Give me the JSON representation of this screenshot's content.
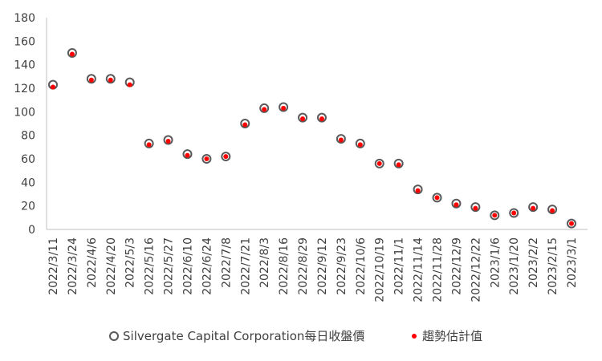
{
  "chart_data": {
    "type": "scatter",
    "title": "",
    "xlabel": "",
    "ylabel": "",
    "ylim": [
      0,
      180
    ],
    "y_ticks": [
      0,
      20,
      40,
      60,
      80,
      100,
      120,
      140,
      160,
      180
    ],
    "x_tick_labels": [
      "2022/3/11",
      "2022/3/24",
      "2022/4/6",
      "2022/4/20",
      "2022/5/3",
      "2022/5/16",
      "2022/5/27",
      "2022/6/10",
      "2022/6/24",
      "2022/7/8",
      "2022/7/21",
      "2022/8/3",
      "2022/8/16",
      "2022/8/29",
      "2022/9/12",
      "2022/9/23",
      "2022/10/6",
      "2022/10/19",
      "2022/11/1",
      "2022/11/14",
      "2022/11/28",
      "2022/12/9",
      "2022/12/22",
      "2023/1/6",
      "2023/1/20",
      "2023/2/2",
      "2023/2/15",
      "2023/3/1"
    ],
    "grid": false,
    "legend_position": "bottom",
    "series": [
      {
        "name": "Silvergate Capital Corporation每日收盤價",
        "marker": "open-circle",
        "color": "#595959",
        "x": [
          "2022/3/11",
          "2022/3/24",
          "2022/4/6",
          "2022/4/20",
          "2022/5/3",
          "2022/5/16",
          "2022/5/27",
          "2022/6/10",
          "2022/6/24",
          "2022/7/8",
          "2022/7/21",
          "2022/8/3",
          "2022/8/16",
          "2022/8/29",
          "2022/9/12",
          "2022/9/23",
          "2022/10/6",
          "2022/10/19",
          "2022/11/1",
          "2022/11/14",
          "2022/11/28",
          "2022/12/9",
          "2022/12/22",
          "2023/1/6",
          "2023/1/20",
          "2023/2/2",
          "2023/2/15",
          "2023/3/1"
        ],
        "values": [
          123,
          150,
          128,
          128,
          125,
          73,
          76,
          64,
          60,
          62,
          90,
          103,
          104,
          95,
          95,
          77,
          73,
          56,
          56,
          34,
          27,
          22,
          19,
          12,
          14,
          19,
          17,
          5
        ]
      },
      {
        "name": "趨勢估計值",
        "marker": "dot",
        "color": "#ff0000",
        "x": [
          "2022/3/11",
          "2022/3/24",
          "2022/4/6",
          "2022/4/20",
          "2022/5/3",
          "2022/5/16",
          "2022/5/27",
          "2022/6/10",
          "2022/6/24",
          "2022/7/8",
          "2022/7/21",
          "2022/8/3",
          "2022/8/16",
          "2022/8/29",
          "2022/9/12",
          "2022/9/23",
          "2022/10/6",
          "2022/10/19",
          "2022/11/1",
          "2022/11/14",
          "2022/11/28",
          "2022/12/9",
          "2022/12/22",
          "2023/1/6",
          "2023/1/20",
          "2023/2/2",
          "2023/2/15",
          "2023/3/1"
        ],
        "values": [
          121,
          149,
          127,
          127,
          123,
          72,
          75,
          63,
          60,
          62,
          89,
          102,
          103,
          94,
          94,
          76,
          72,
          56,
          55,
          33,
          27,
          21,
          18,
          12,
          14,
          18,
          16,
          5
        ]
      }
    ]
  }
}
